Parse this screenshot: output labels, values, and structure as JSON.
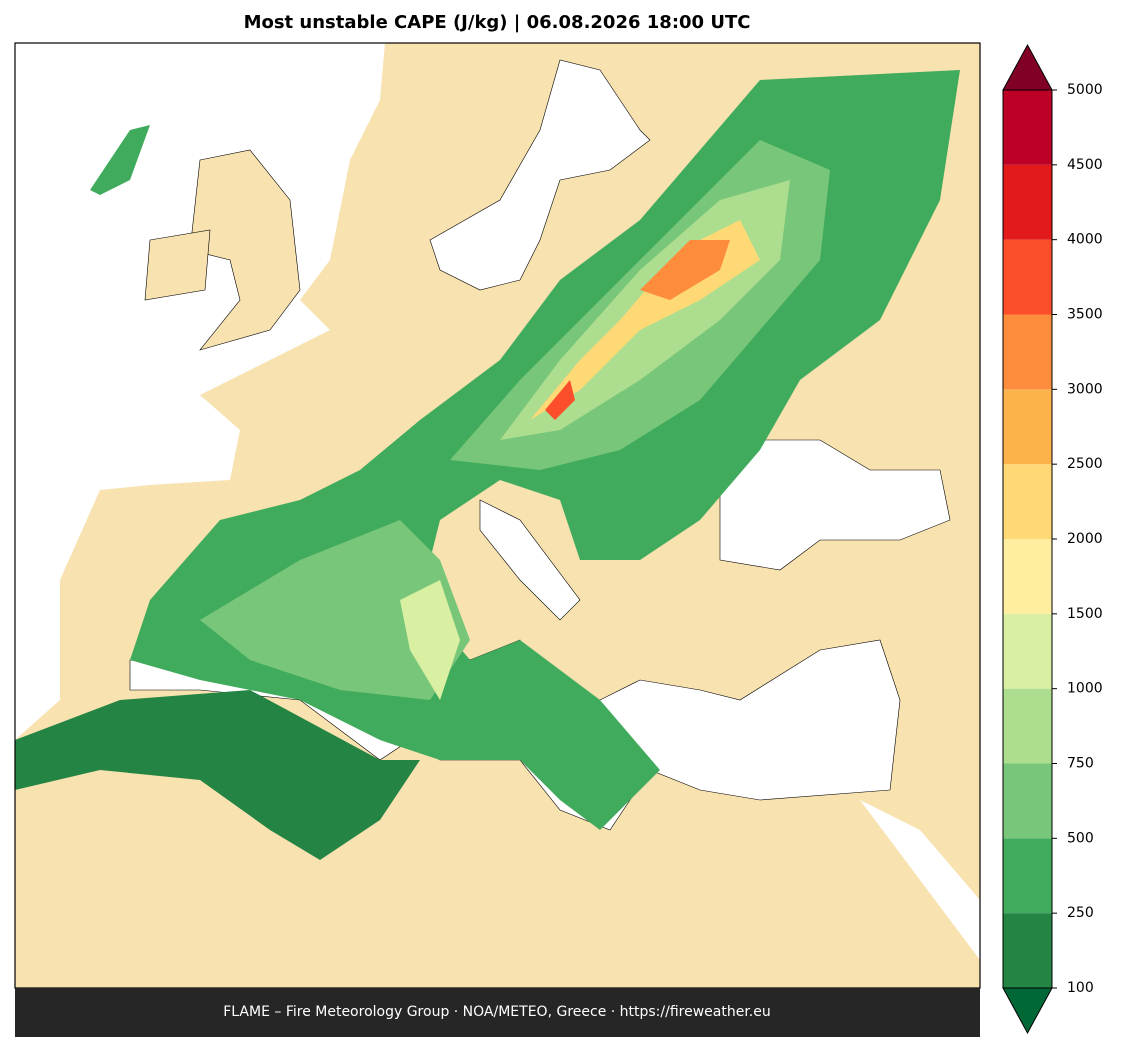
{
  "title": "Most unstable CAPE (J/kg)  |  06.08.2026 18:00 UTC",
  "colorbar": {
    "ticks": [
      100,
      250,
      500,
      750,
      1000,
      1500,
      2000,
      2500,
      3000,
      3500,
      4000,
      4500,
      5000
    ],
    "colors": [
      "#238443",
      "#41ab5d",
      "#78c679",
      "#addd8e",
      "#d9f0a3",
      "#ffeda0",
      "#fed976",
      "#feb24c",
      "#fd8d3c",
      "#fc4e2a",
      "#e31a1c",
      "#bd0026"
    ],
    "under_color": "#006837",
    "over_color": "#800026"
  },
  "footer": "FLAME – Fire Meteorology Group · NOA/METEO, Greece · https://fireweather.eu"
}
